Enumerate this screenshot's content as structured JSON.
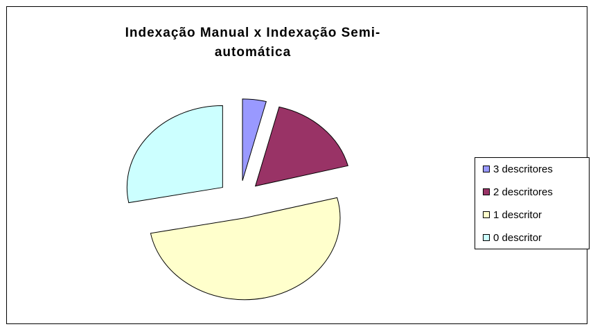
{
  "chart_data": {
    "type": "pie",
    "title": "Indexação Manual  x Indexação Semi-automática",
    "categories": [
      "3 descritores",
      "2 descritores",
      "1 descritor",
      "0 descritor"
    ],
    "values": [
      4,
      17,
      51,
      28
    ],
    "colors": [
      "#9999ff",
      "#993366",
      "#ffffcc",
      "#ccffff"
    ],
    "exploded": true,
    "legend": "right"
  }
}
